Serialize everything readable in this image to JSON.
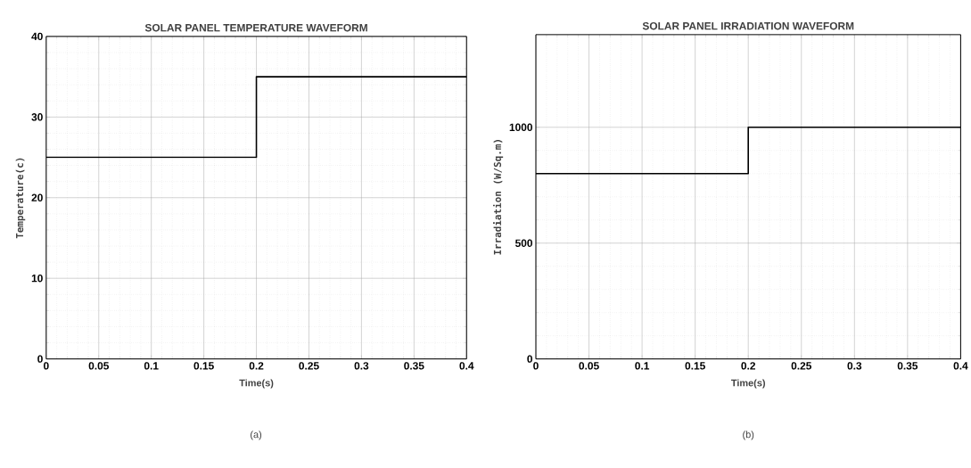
{
  "chart_data": [
    {
      "type": "step",
      "title": "SOLAR PANEL TEMPERATURE WAVEFORM",
      "xlabel": "Time(s)",
      "ylabel": "Temperature(c)",
      "annotations": [
        "(a)"
      ],
      "x": [
        0,
        0.2,
        0.4
      ],
      "series": [
        {
          "color": "#000000",
          "values": [
            25,
            35,
            35
          ]
        }
      ],
      "xlim": [
        0,
        0.4
      ],
      "ylim": [
        0,
        40
      ],
      "xticks": [
        0,
        0.05,
        0.1,
        0.15,
        0.2,
        0.25,
        0.3,
        0.35,
        0.4
      ],
      "yticks": [
        0,
        10,
        20,
        30,
        40
      ],
      "grid": true
    },
    {
      "type": "step",
      "title": "SOLAR PANEL IRRADIATION WAVEFORM",
      "xlabel": "Time(s)",
      "ylabel": "Irradiation (W/Sq.m)",
      "annotations": [
        "(b)"
      ],
      "x": [
        0,
        0.2,
        0.4
      ],
      "series": [
        {
          "color": "#000000",
          "values": [
            800,
            1000,
            1000
          ]
        }
      ],
      "xlim": [
        0,
        0.4
      ],
      "ylim": [
        0,
        1400
      ],
      "xticks": [
        0,
        0.05,
        0.1,
        0.15,
        0.2,
        0.25,
        0.3,
        0.35,
        0.4
      ],
      "yticks": [
        0,
        500,
        1000
      ],
      "grid": true
    }
  ]
}
